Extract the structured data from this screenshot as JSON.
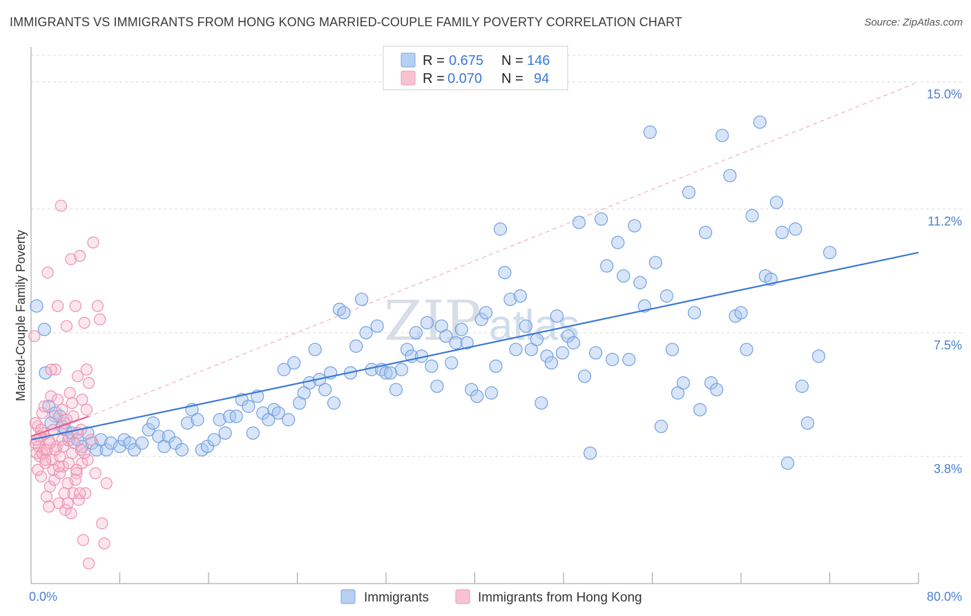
{
  "title": "IMMIGRANTS VS IMMIGRANTS FROM HONG KONG MARRIED-COUPLE FAMILY POVERTY CORRELATION CHART",
  "source": "Source: ZipAtlas.com",
  "watermark": {
    "zip": "ZIP",
    "atlas": "atlas"
  },
  "colors": {
    "blue": "#3a78d4",
    "blue_fill": "#a8c6ef",
    "pink": "#e8608e",
    "pink_fill": "#f6b8cb",
    "grid": "#d8d8d8"
  },
  "legend": {
    "rows": [
      {
        "r_label": "R =",
        "r_value": "0.675",
        "n_label": "N =",
        "n_value": "146"
      },
      {
        "r_label": "R =",
        "r_value": "0.070",
        "n_label": "N =",
        "n_value": "94"
      }
    ]
  },
  "bottom_legend": [
    "Immigrants",
    "Immigrants from Hong Kong"
  ],
  "chart_data": {
    "type": "scatter",
    "title": "IMMIGRANTS VS IMMIGRANTS FROM HONG KONG MARRIED-COUPLE FAMILY POVERTY CORRELATION CHART",
    "xlabel": "",
    "ylabel": "Married-Couple Family Poverty",
    "xlim": [
      0,
      80
    ],
    "ylim": [
      0,
      15.8
    ],
    "x_tick_labels": [
      "0.0%",
      "80.0%"
    ],
    "y_ticks": [
      3.8,
      7.5,
      11.2,
      15.0
    ],
    "y_tick_labels": [
      "3.8%",
      "7.5%",
      "11.2%",
      "15.0%"
    ],
    "grid": true,
    "legend_position": "top-center",
    "series": [
      {
        "name": "Immigrants",
        "color": "#3a78d4",
        "trend": {
          "x": [
            0,
            80
          ],
          "y": [
            4.3,
            9.9
          ]
        },
        "points": [
          [
            0.5,
            8.3
          ],
          [
            1.2,
            7.6
          ],
          [
            1.3,
            6.3
          ],
          [
            1.6,
            5.3
          ],
          [
            1.8,
            4.8
          ],
          [
            2.2,
            5.1
          ],
          [
            2.6,
            5.0
          ],
          [
            2.8,
            4.7
          ],
          [
            3.1,
            4.6
          ],
          [
            3.4,
            4.3
          ],
          [
            3.7,
            4.5
          ],
          [
            4.2,
            4.3
          ],
          [
            4.6,
            4.1
          ],
          [
            5.1,
            4.5
          ],
          [
            5.5,
            4.2
          ],
          [
            5.9,
            4.0
          ],
          [
            6.3,
            4.3
          ],
          [
            6.8,
            4.0
          ],
          [
            7.2,
            4.2
          ],
          [
            8.0,
            4.1
          ],
          [
            8.4,
            4.3
          ],
          [
            8.9,
            4.2
          ],
          [
            9.3,
            4.0
          ],
          [
            10.0,
            4.2
          ],
          [
            10.6,
            4.6
          ],
          [
            11.0,
            4.8
          ],
          [
            11.5,
            4.4
          ],
          [
            12.0,
            4.1
          ],
          [
            12.4,
            4.4
          ],
          [
            13.0,
            4.2
          ],
          [
            13.6,
            4.0
          ],
          [
            14.1,
            4.8
          ],
          [
            14.5,
            5.2
          ],
          [
            15.0,
            4.9
          ],
          [
            15.4,
            4.0
          ],
          [
            15.9,
            4.1
          ],
          [
            16.5,
            4.3
          ],
          [
            17.0,
            4.9
          ],
          [
            17.5,
            4.5
          ],
          [
            17.9,
            5.0
          ],
          [
            18.5,
            5.0
          ],
          [
            19.0,
            5.5
          ],
          [
            19.6,
            5.3
          ],
          [
            20.0,
            4.5
          ],
          [
            20.4,
            5.6
          ],
          [
            20.9,
            5.1
          ],
          [
            21.4,
            4.9
          ],
          [
            21.9,
            5.2
          ],
          [
            22.3,
            5.1
          ],
          [
            22.8,
            6.4
          ],
          [
            23.2,
            4.9
          ],
          [
            23.7,
            6.6
          ],
          [
            24.2,
            5.4
          ],
          [
            24.6,
            5.7
          ],
          [
            25.1,
            6.0
          ],
          [
            25.6,
            7.0
          ],
          [
            26.0,
            6.1
          ],
          [
            26.5,
            5.8
          ],
          [
            27.0,
            6.3
          ],
          [
            27.3,
            5.4
          ],
          [
            27.8,
            8.2
          ],
          [
            28.2,
            8.1
          ],
          [
            28.8,
            6.3
          ],
          [
            29.3,
            7.1
          ],
          [
            29.8,
            8.5
          ],
          [
            30.2,
            7.5
          ],
          [
            30.7,
            6.4
          ],
          [
            31.2,
            7.7
          ],
          [
            31.6,
            6.4
          ],
          [
            32.0,
            6.3
          ],
          [
            32.4,
            6.3
          ],
          [
            32.9,
            5.8
          ],
          [
            33.4,
            6.4
          ],
          [
            33.9,
            7.0
          ],
          [
            34.3,
            6.8
          ],
          [
            34.7,
            7.5
          ],
          [
            35.2,
            6.8
          ],
          [
            35.7,
            7.8
          ],
          [
            36.1,
            6.5
          ],
          [
            36.6,
            5.9
          ],
          [
            37.0,
            7.7
          ],
          [
            37.4,
            7.4
          ],
          [
            37.9,
            6.6
          ],
          [
            38.3,
            7.2
          ],
          [
            38.8,
            7.6
          ],
          [
            39.3,
            7.2
          ],
          [
            39.7,
            5.8
          ],
          [
            40.2,
            5.6
          ],
          [
            40.6,
            7.9
          ],
          [
            41.0,
            8.1
          ],
          [
            41.5,
            5.7
          ],
          [
            41.9,
            6.5
          ],
          [
            42.3,
            10.6
          ],
          [
            42.7,
            9.3
          ],
          [
            43.2,
            8.5
          ],
          [
            43.7,
            7.0
          ],
          [
            44.1,
            8.6
          ],
          [
            44.6,
            7.7
          ],
          [
            45.1,
            7.0
          ],
          [
            45.6,
            7.3
          ],
          [
            46.0,
            5.4
          ],
          [
            46.5,
            6.8
          ],
          [
            46.9,
            6.6
          ],
          [
            47.4,
            8.0
          ],
          [
            47.9,
            6.9
          ],
          [
            48.4,
            7.4
          ],
          [
            48.9,
            7.2
          ],
          [
            49.4,
            10.8
          ],
          [
            49.9,
            6.2
          ],
          [
            50.4,
            3.9
          ],
          [
            50.9,
            6.9
          ],
          [
            51.4,
            10.9
          ],
          [
            51.9,
            9.5
          ],
          [
            52.4,
            6.7
          ],
          [
            52.9,
            10.2
          ],
          [
            53.4,
            9.2
          ],
          [
            53.9,
            6.7
          ],
          [
            54.4,
            10.7
          ],
          [
            54.9,
            9.0
          ],
          [
            55.3,
            8.3
          ],
          [
            55.8,
            13.5
          ],
          [
            56.3,
            9.6
          ],
          [
            56.8,
            4.7
          ],
          [
            57.3,
            8.6
          ],
          [
            57.8,
            7.0
          ],
          [
            58.3,
            5.7
          ],
          [
            58.8,
            6.0
          ],
          [
            59.3,
            11.7
          ],
          [
            59.8,
            8.1
          ],
          [
            60.3,
            5.2
          ],
          [
            60.8,
            10.5
          ],
          [
            61.3,
            6.0
          ],
          [
            61.8,
            5.8
          ],
          [
            62.3,
            13.4
          ],
          [
            63.0,
            12.2
          ],
          [
            63.5,
            8.0
          ],
          [
            64.0,
            8.1
          ],
          [
            64.5,
            7.0
          ],
          [
            65.0,
            11.0
          ],
          [
            65.7,
            13.8
          ],
          [
            66.2,
            9.2
          ],
          [
            66.7,
            9.1
          ],
          [
            67.2,
            11.4
          ],
          [
            67.7,
            10.5
          ],
          [
            68.2,
            3.6
          ],
          [
            68.9,
            10.6
          ],
          [
            69.5,
            5.9
          ],
          [
            70.0,
            4.8
          ],
          [
            71.0,
            6.8
          ],
          [
            72.0,
            9.9
          ]
        ]
      },
      {
        "name": "Immigrants from Hong Kong",
        "color": "#e8608e",
        "trend": {
          "x": [
            0,
            5.2
          ],
          "y": [
            4.4,
            5.0
          ]
        },
        "points": [
          [
            0.3,
            7.4
          ],
          [
            0.4,
            4.2
          ],
          [
            0.5,
            3.9
          ],
          [
            0.6,
            4.7
          ],
          [
            0.7,
            4.1
          ],
          [
            0.8,
            3.8
          ],
          [
            0.9,
            3.2
          ],
          [
            1.0,
            5.1
          ],
          [
            1.1,
            4.5
          ],
          [
            1.2,
            4.0
          ],
          [
            1.3,
            3.6
          ],
          [
            1.4,
            2.6
          ],
          [
            1.5,
            9.3
          ],
          [
            1.6,
            4.3
          ],
          [
            1.7,
            2.9
          ],
          [
            1.8,
            5.6
          ],
          [
            1.9,
            3.7
          ],
          [
            2.0,
            4.6
          ],
          [
            2.1,
            3.1
          ],
          [
            2.2,
            6.4
          ],
          [
            2.3,
            4.1
          ],
          [
            2.4,
            8.3
          ],
          [
            2.5,
            2.4
          ],
          [
            2.6,
            3.8
          ],
          [
            2.7,
            11.3
          ],
          [
            2.8,
            5.2
          ],
          [
            2.9,
            3.5
          ],
          [
            3.0,
            4.8
          ],
          [
            3.1,
            2.2
          ],
          [
            3.2,
            7.7
          ],
          [
            3.3,
            3.0
          ],
          [
            3.4,
            4.4
          ],
          [
            3.5,
            5.7
          ],
          [
            3.6,
            9.7
          ],
          [
            3.7,
            3.9
          ],
          [
            3.8,
            2.7
          ],
          [
            3.9,
            4.2
          ],
          [
            4.0,
            8.3
          ],
          [
            4.1,
            3.3
          ],
          [
            4.2,
            6.2
          ],
          [
            4.3,
            2.5
          ],
          [
            4.4,
            9.8
          ],
          [
            4.5,
            4.6
          ],
          [
            4.6,
            3.6
          ],
          [
            4.7,
            1.3
          ],
          [
            4.8,
            7.8
          ],
          [
            4.9,
            2.7
          ],
          [
            5.0,
            5.2
          ],
          [
            5.1,
            3.7
          ],
          [
            5.2,
            6.0
          ],
          [
            0.4,
            4.8
          ],
          [
            0.6,
            3.4
          ],
          [
            0.8,
            4.4
          ],
          [
            1.0,
            3.9
          ],
          [
            1.2,
            5.3
          ],
          [
            1.4,
            4.0
          ],
          [
            1.6,
            2.3
          ],
          [
            1.8,
            6.4
          ],
          [
            2.0,
            3.4
          ],
          [
            2.2,
            4.0
          ],
          [
            2.4,
            5.5
          ],
          [
            2.6,
            3.3
          ],
          [
            2.8,
            4.3
          ],
          [
            3.0,
            2.7
          ],
          [
            3.2,
            4.9
          ],
          [
            3.4,
            3.6
          ],
          [
            3.6,
            2.1
          ],
          [
            3.8,
            5.0
          ],
          [
            4.0,
            3.1
          ],
          [
            4.2,
            4.5
          ],
          [
            4.4,
            2.7
          ],
          [
            4.6,
            5.5
          ],
          [
            4.8,
            3.9
          ],
          [
            5.0,
            6.4
          ],
          [
            5.2,
            0.6
          ],
          [
            5.4,
            4.3
          ],
          [
            5.6,
            10.2
          ],
          [
            5.8,
            3.3
          ],
          [
            6.0,
            8.3
          ],
          [
            6.2,
            7.9
          ],
          [
            6.4,
            1.8
          ],
          [
            6.6,
            1.2
          ],
          [
            6.8,
            3.0
          ],
          [
            0.5,
            4.3
          ],
          [
            0.9,
            4.6
          ],
          [
            1.3,
            3.7
          ],
          [
            1.7,
            4.2
          ],
          [
            2.1,
            5.0
          ],
          [
            2.5,
            3.5
          ],
          [
            2.9,
            4.1
          ],
          [
            3.3,
            2.4
          ],
          [
            3.7,
            5.4
          ],
          [
            4.1,
            3.4
          ],
          [
            4.5,
            4.0
          ]
        ]
      }
    ]
  }
}
